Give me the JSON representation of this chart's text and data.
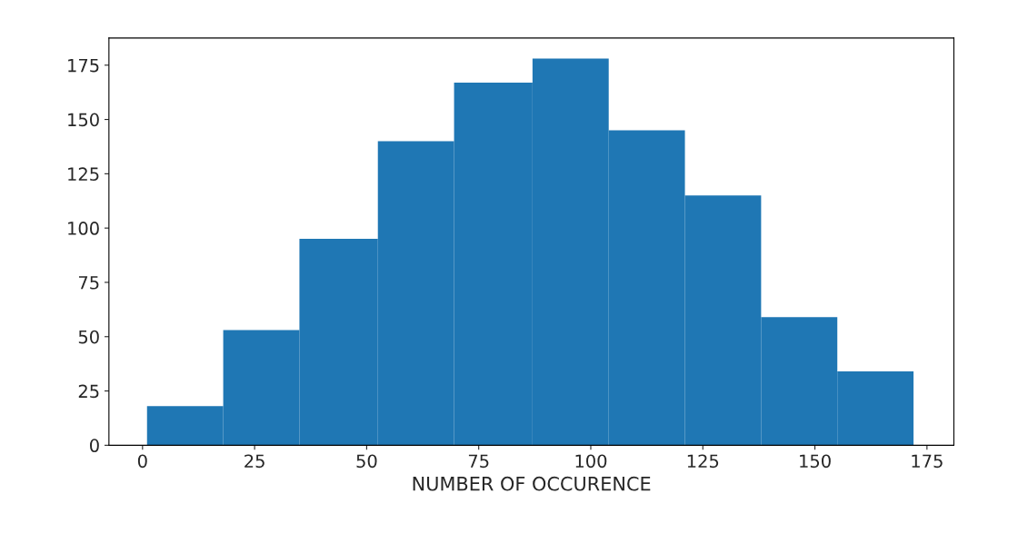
{
  "chart_data": {
    "type": "histogram",
    "xlabel": "NUMBER OF OCCURENCE",
    "bins": [
      1,
      18,
      35,
      52.5,
      69.5,
      87,
      104,
      121,
      138,
      155,
      172
    ],
    "values": [
      18,
      53,
      95,
      140,
      167,
      178,
      145,
      115,
      59,
      34
    ],
    "color": "#1f77b4",
    "xlim": [
      -7.5,
      181
    ],
    "ylim": [
      0,
      187.5
    ],
    "xticks": [
      0,
      25,
      50,
      75,
      100,
      125,
      150,
      175
    ],
    "yticks": [
      0,
      25,
      50,
      75,
      100,
      125,
      150,
      175
    ],
    "grid": false
  }
}
